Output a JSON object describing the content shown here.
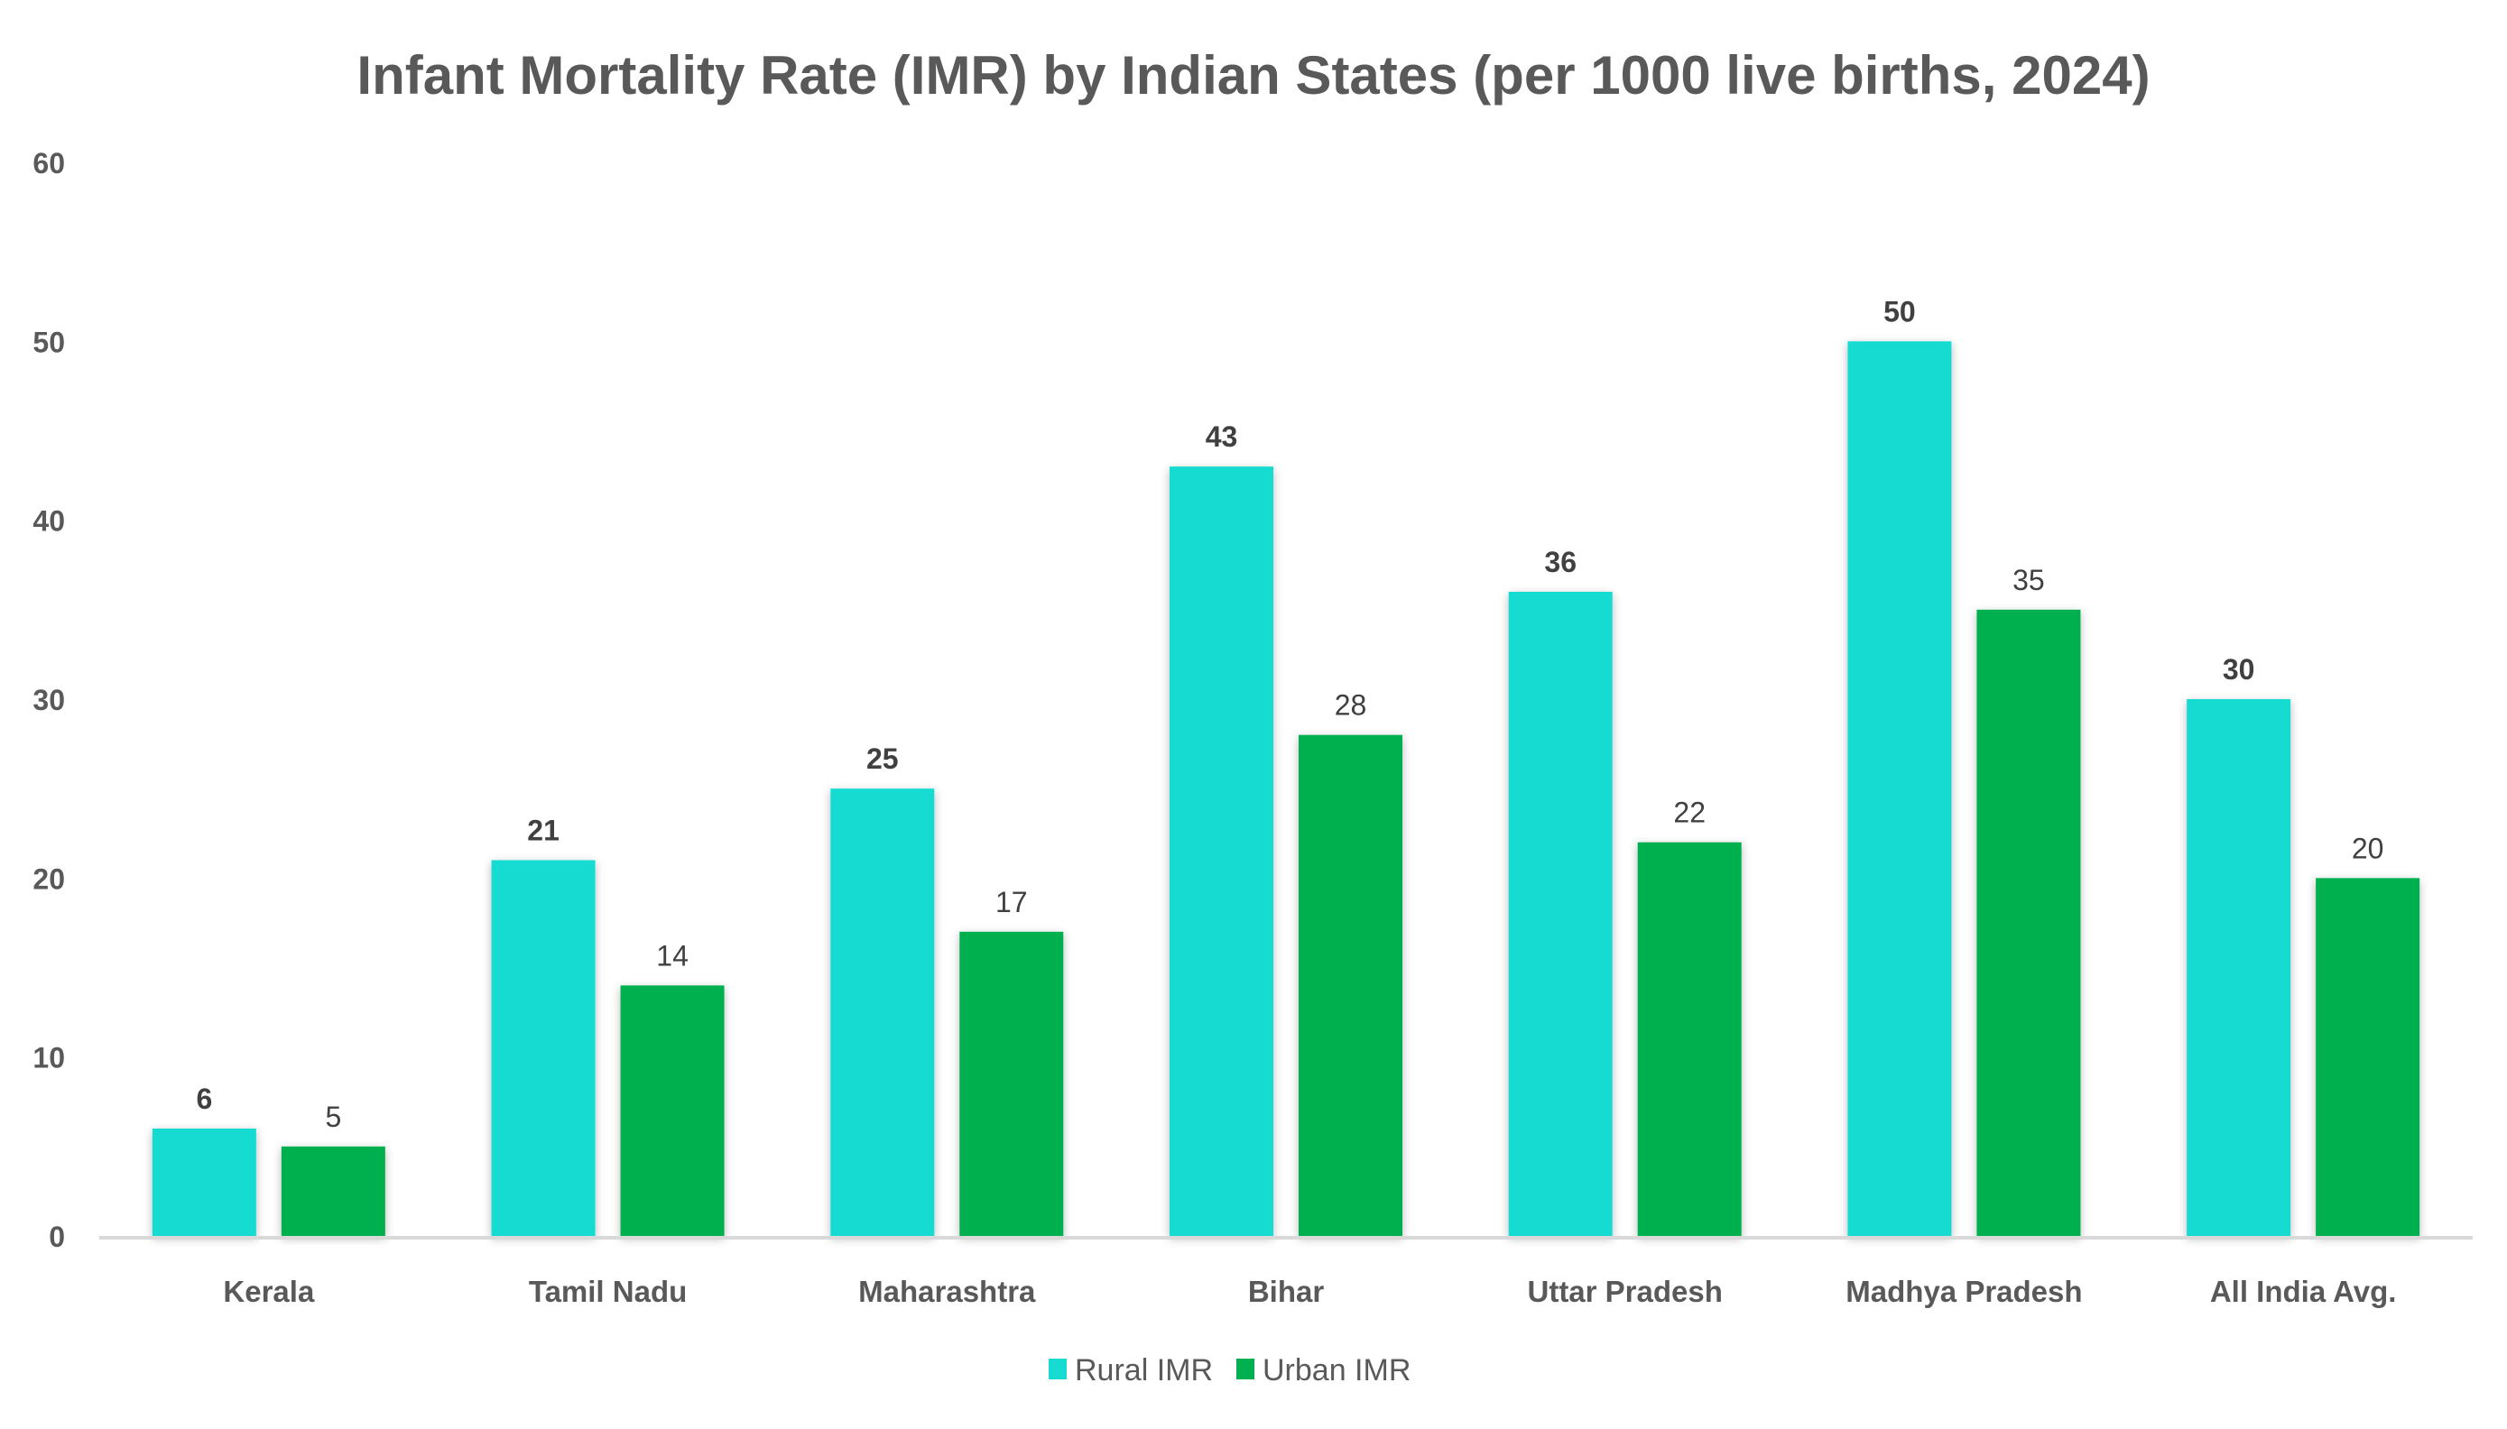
{
  "chart_data": {
    "type": "bar",
    "title": "Infant Mortality Rate (IMR) by Indian States (per 1000 live births, 2024)",
    "xlabel": "",
    "ylabel": "",
    "ylim": [
      0,
      60
    ],
    "yticks": [
      "0",
      "10",
      "20",
      "30",
      "40",
      "50",
      "60"
    ],
    "grid": false,
    "legend_position": "bottom",
    "categories": [
      "Kerala",
      "Tamil Nadu",
      "Maharashtra",
      "Bihar",
      "Uttar Pradesh",
      "Madhya Pradesh",
      "All India Avg."
    ],
    "series": [
      {
        "name": "Rural IMR",
        "color": "#17DBD1",
        "values": [
          6,
          21,
          25,
          43,
          36,
          50,
          30
        ]
      },
      {
        "name": "Urban IMR",
        "color": "#00B050",
        "values": [
          5,
          14,
          17,
          28,
          22,
          35,
          20
        ]
      }
    ]
  }
}
